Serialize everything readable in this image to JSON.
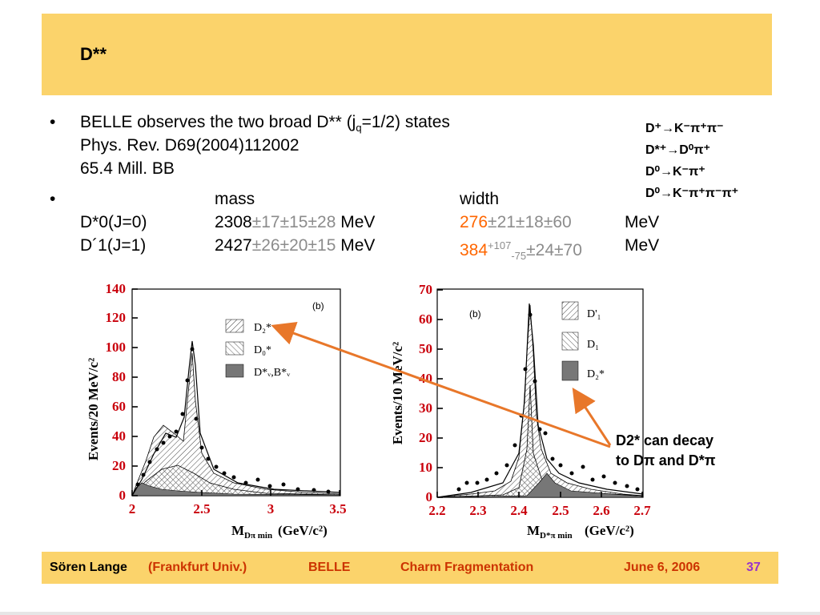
{
  "slide": {
    "title": "D**",
    "bullet_mark": "•",
    "bullet1": {
      "line1_pre": "BELLE observes the two broad D** (j",
      "line1_sub": "q",
      "line1_post": "=1/2) states",
      "line2": "Phys. Rev. D69(2004)112002",
      "line3": "65.4 Mill. BB"
    },
    "bullet2": {
      "head_mass": "mass",
      "head_width": "width",
      "row1": {
        "state": "D*0(J=0)",
        "mass_value": "2308",
        "mass_errors": "±17±15±28",
        "mass_unit": "MeV",
        "width_value": "276",
        "width_errors": "±21±18±60",
        "width_unit": "MeV"
      },
      "row2": {
        "state": "D´1(J=1)",
        "mass_value": "2427",
        "mass_errors": "±26±20±15",
        "mass_unit": "MeV",
        "width_value": "384",
        "width_sup": "+107",
        "width_sub": "-75",
        "width_errors": "±24±70",
        "width_unit": "MeV"
      }
    },
    "decays": [
      "D⁺→K⁻π⁺π⁻",
      "D*⁺→D⁰π⁺",
      "D⁰→K⁻π⁺",
      "D⁰→K⁻π⁺π⁻π⁺"
    ],
    "callout": {
      "line1": "D2* can decay",
      "line2": "to Dπ and D*π"
    },
    "footer": {
      "author": "Sören Lange",
      "affiliation": "(Frankfurt Univ.)",
      "experiment": "BELLE",
      "topic": "Charm Fragmentation",
      "date": "June 6, 2006",
      "page": "37"
    },
    "colors": {
      "band": "#fbd36b",
      "orange": "#ff6600",
      "grey": "#8c8c8c",
      "arrow": "#e8772a"
    }
  },
  "plots": {
    "left": {
      "tag": "(b)",
      "ylabel": "Events/20 MeV/c²",
      "xlabel_main": "M",
      "xlabel_sub": "Dπ min",
      "xlabel_unit": "(GeV/c²)",
      "yticks": [
        "0",
        "20",
        "40",
        "60",
        "80",
        "100",
        "120",
        "140"
      ],
      "xticks": [
        "2",
        "2.5",
        "3",
        "3.5"
      ],
      "legend": [
        "D₂*",
        "D₀*",
        "D*ᵥ,B*ᵥ"
      ]
    },
    "right": {
      "tag": "(b)",
      "ylabel": "Events/10 MeV/c²",
      "xlabel_main": "M",
      "xlabel_sub": "D*π min",
      "xlabel_unit": "(GeV/c²)",
      "yticks": [
        "0",
        "10",
        "20",
        "30",
        "40",
        "50",
        "60",
        "70"
      ],
      "xticks": [
        "2.2",
        "2.3",
        "2.4",
        "2.5",
        "2.6",
        "2.7"
      ],
      "legend": [
        "D'₁",
        "D₁",
        "D₂*"
      ]
    }
  }
}
